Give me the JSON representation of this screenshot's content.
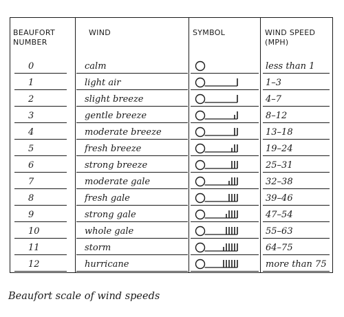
{
  "headers": {
    "number": [
      "BEAUFORT",
      "NUMBER"
    ],
    "wind": "WIND",
    "symbol": "SYMBOL",
    "speed": [
      "WIND SPEED",
      "(MPH)"
    ]
  },
  "rows": [
    {
      "number": "0",
      "wind": "calm",
      "speed": "less than 1",
      "barbs": 0
    },
    {
      "number": "1",
      "wind": "light air",
      "speed": "1–3",
      "barbs": 1
    },
    {
      "number": "2",
      "wind": "slight breeze",
      "speed": "4–7",
      "barbs": 1
    },
    {
      "number": "3",
      "wind": "gentle breeze",
      "speed": "8–12",
      "barbs": 1.5
    },
    {
      "number": "4",
      "wind": "moderate breeze",
      "speed": "13–18",
      "barbs": 2
    },
    {
      "number": "5",
      "wind": "fresh breeze",
      "speed": "19–24",
      "barbs": 2.5
    },
    {
      "number": "6",
      "wind": "strong breeze",
      "speed": "25–31",
      "barbs": 3
    },
    {
      "number": "7",
      "wind": "moderate gale",
      "speed": "32–38",
      "barbs": 3.5
    },
    {
      "number": "8",
      "wind": "fresh gale",
      "speed": "39–46",
      "barbs": 4
    },
    {
      "number": "9",
      "wind": "strong gale",
      "speed": "47–54",
      "barbs": 4.5
    },
    {
      "number": "10",
      "wind": "whole gale",
      "speed": "55–63",
      "barbs": 5
    },
    {
      "number": "11",
      "wind": "storm",
      "speed": "64–75",
      "barbs": 5.5
    },
    {
      "number": "12",
      "wind": "hurricane",
      "speed": "more than 75",
      "barbs": 6
    }
  ],
  "caption": "Beaufort scale of wind speeds"
}
